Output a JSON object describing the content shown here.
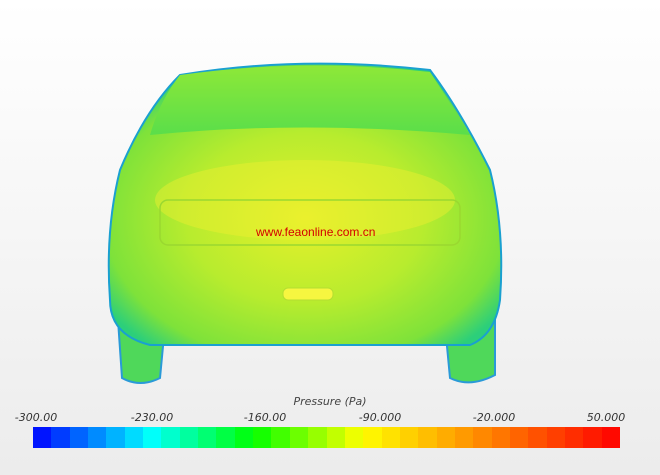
{
  "watermark": "www.feaonline.com.cn",
  "legend": {
    "title": "Pressure (Pa)",
    "ticks": [
      "-300.00",
      "-230.00",
      "-160.00",
      "-90.000",
      "-20.000",
      "50.000"
    ],
    "range": [
      -300,
      50
    ],
    "bins": 32,
    "colormap_stops": [
      "#0000ff",
      "#00ffff",
      "#00ff00",
      "#ffff00",
      "#ff0000"
    ]
  }
}
